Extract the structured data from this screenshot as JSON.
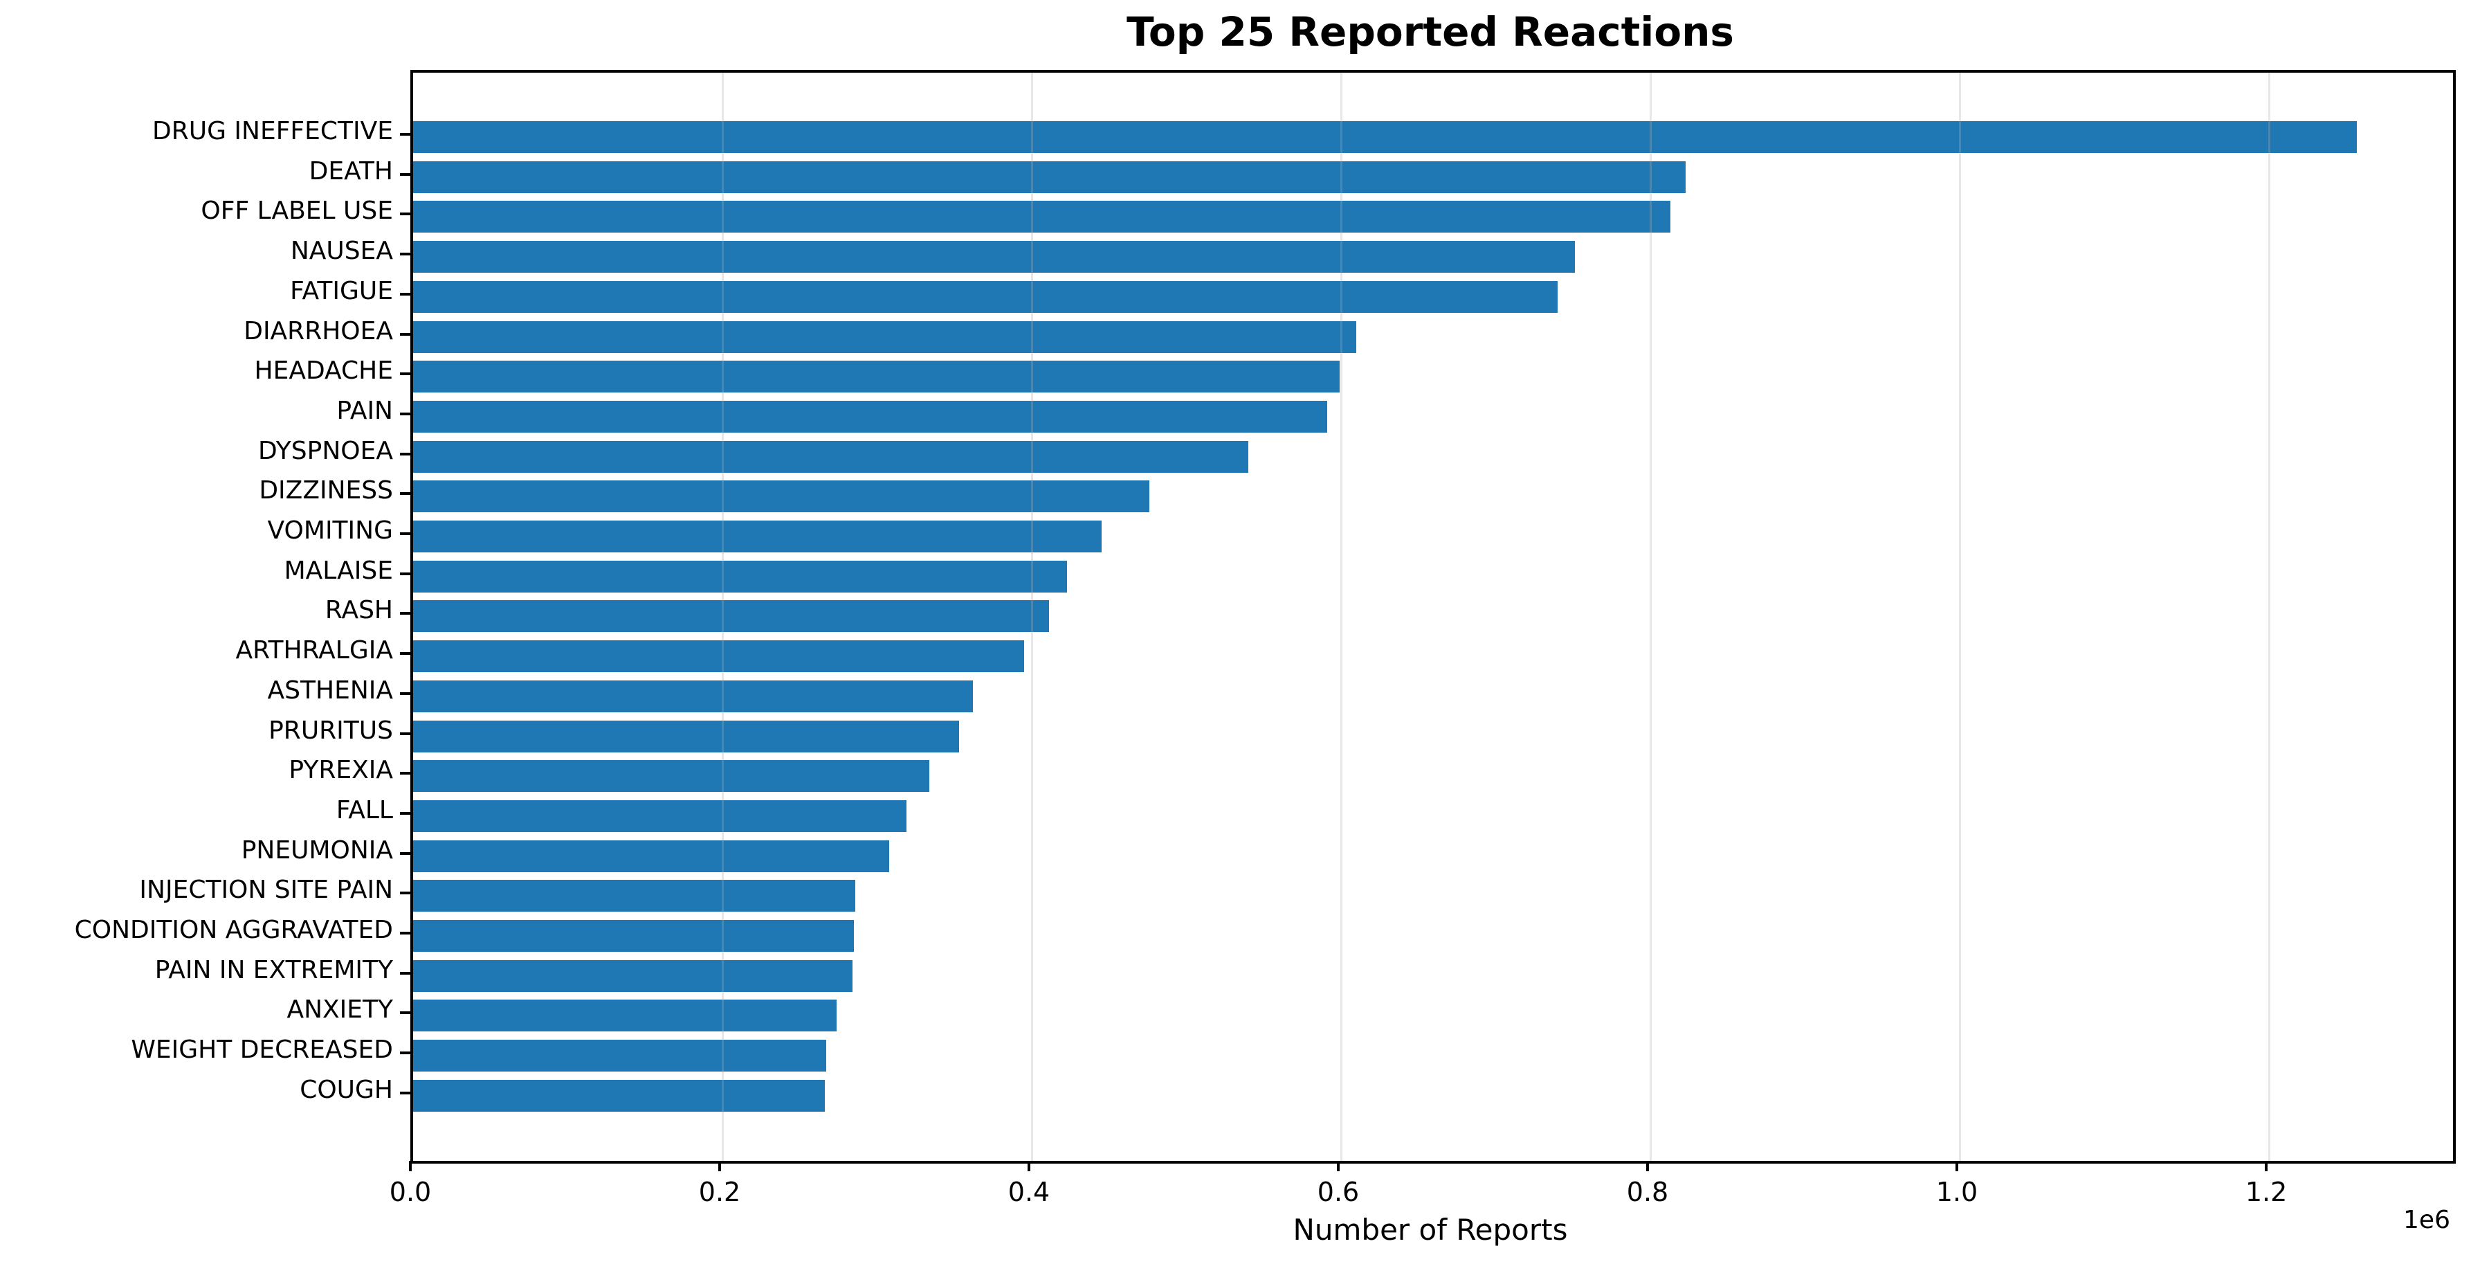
{
  "chart_data": {
    "type": "bar",
    "orientation": "horizontal",
    "title": "Top 25 Reported Reactions",
    "xlabel": "Number of Reports",
    "offset_text": "1e6",
    "categories": [
      "DRUG INEFFECTIVE",
      "DEATH",
      "OFF LABEL USE",
      "NAUSEA",
      "FATIGUE",
      "DIARRHOEA",
      "HEADACHE",
      "PAIN",
      "DYSPNOEA",
      "DIZZINESS",
      "VOMITING",
      "MALAISE",
      "RASH",
      "ARTHRALGIA",
      "ASTHENIA",
      "PRURITUS",
      "PYREXIA",
      "FALL",
      "PNEUMONIA",
      "INJECTION SITE PAIN",
      "CONDITION AGGRAVATED",
      "PAIN IN EXTREMITY",
      "ANXIETY",
      "WEIGHT DECREASED",
      "COUGH"
    ],
    "values": [
      1257000,
      823000,
      813000,
      751000,
      740000,
      610000,
      599000,
      591000,
      540000,
      476000,
      445000,
      423000,
      411000,
      395000,
      362000,
      353000,
      334000,
      319000,
      308000,
      286000,
      285000,
      284000,
      274000,
      267000,
      266000
    ],
    "xlim": [
      0,
      1319000
    ],
    "xticks": [
      0,
      200000,
      400000,
      600000,
      800000,
      1000000,
      1200000
    ],
    "xtick_labels": [
      "0.0",
      "0.2",
      "0.4",
      "0.6",
      "0.8",
      "1.0",
      "1.2"
    ],
    "grid": true,
    "bar_color": "#1f77b4",
    "grid_color": "#b0b0b0",
    "axis_color": "#000000",
    "background_color": "#ffffff"
  }
}
